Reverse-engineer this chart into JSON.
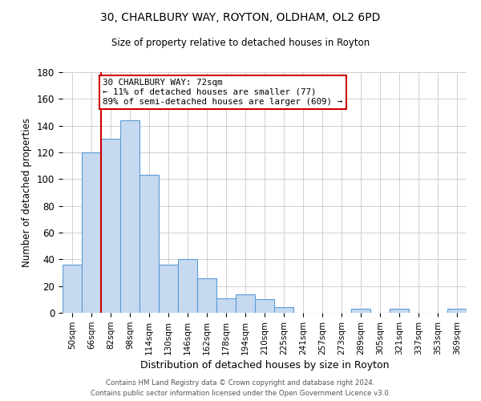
{
  "title": "30, CHARLBURY WAY, ROYTON, OLDHAM, OL2 6PD",
  "subtitle": "Size of property relative to detached houses in Royton",
  "xlabel": "Distribution of detached houses by size in Royton",
  "ylabel": "Number of detached properties",
  "bar_labels": [
    "50sqm",
    "66sqm",
    "82sqm",
    "98sqm",
    "114sqm",
    "130sqm",
    "146sqm",
    "162sqm",
    "178sqm",
    "194sqm",
    "210sqm",
    "225sqm",
    "241sqm",
    "257sqm",
    "273sqm",
    "289sqm",
    "305sqm",
    "321sqm",
    "337sqm",
    "353sqm",
    "369sqm"
  ],
  "bar_values": [
    36,
    120,
    130,
    144,
    103,
    36,
    40,
    26,
    11,
    14,
    10,
    4,
    0,
    0,
    0,
    3,
    0,
    3,
    0,
    0,
    3
  ],
  "bar_color": "#c6d9f0",
  "bar_edge_color": "#5b9bd5",
  "property_line_color": "#cc0000",
  "annotation_text": "30 CHARLBURY WAY: 72sqm\n← 11% of detached houses are smaller (77)\n89% of semi-detached houses are larger (609) →",
  "annotation_box_color": "#ffffff",
  "annotation_box_edge": "#cc0000",
  "ylim": [
    0,
    180
  ],
  "yticks": [
    0,
    20,
    40,
    60,
    80,
    100,
    120,
    140,
    160,
    180
  ],
  "footer_line1": "Contains HM Land Registry data © Crown copyright and database right 2024.",
  "footer_line2": "Contains public sector information licensed under the Open Government Licence v3.0.",
  "bg_color": "#ffffff",
  "grid_color": "#d0d0d0"
}
